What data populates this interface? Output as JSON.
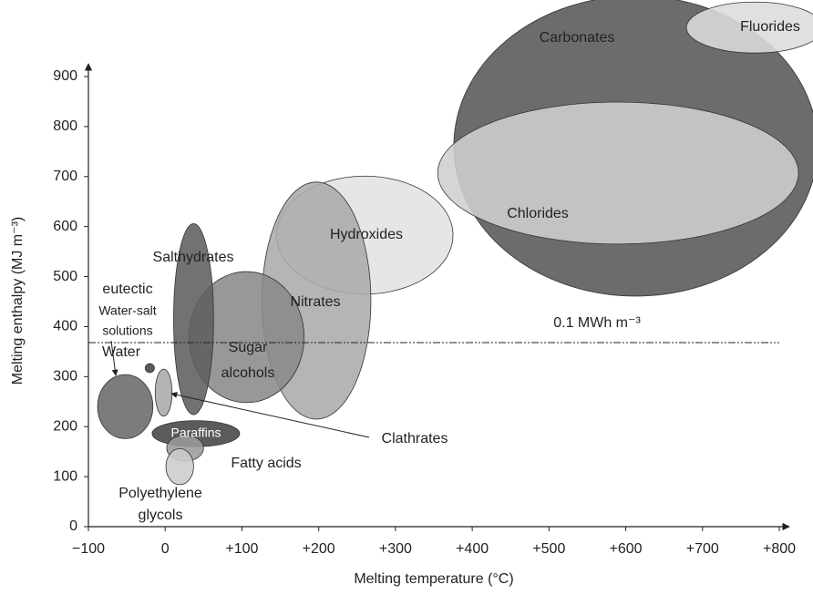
{
  "chart_data": {
    "type": "ellipse",
    "x_label": "Melting temperature (°C)",
    "y_label": "Melting enthalpy (MJ m⁻³)",
    "xlim": [
      -100,
      800
    ],
    "ylim": [
      0,
      900
    ],
    "xticks": [
      {
        "value": -100,
        "label": "−100"
      },
      0,
      {
        "value": 100,
        "label": "+100"
      },
      {
        "value": 200,
        "label": "+200"
      },
      {
        "value": 300,
        "label": "+300"
      },
      {
        "value": 400,
        "label": "+400"
      },
      {
        "value": 500,
        "label": "+500"
      },
      {
        "value": 600,
        "label": "+600"
      },
      {
        "value": 700,
        "label": "+700"
      },
      {
        "value": 800,
        "label": "+800"
      }
    ],
    "yticks": [
      0,
      100,
      200,
      300,
      400,
      500,
      600,
      700,
      800,
      900
    ],
    "reference_line": {
      "value": 368,
      "label": "0.1 MWh m⁻³"
    },
    "regions": [
      {
        "label": [
          "Carbonates"
        ],
        "color": "#585858",
        "x": 613,
        "rx": 237,
        "y": 761,
        "ry": 300
      },
      {
        "label": [
          "Fluorides"
        ],
        "color": "#dcdcdc",
        "x": 768,
        "rx": 89,
        "y": 998,
        "ry": 51
      },
      {
        "label": [
          "Chlorides"
        ],
        "color": "#cfcfcf",
        "x": 590,
        "rx": 235,
        "y": 707,
        "ry": 142
      },
      {
        "label": [
          "Hydroxides"
        ],
        "color": "#e2e2e2",
        "x": 260,
        "rx": 115,
        "y": 583,
        "ry": 118
      },
      {
        "label": [
          "Nitrates"
        ],
        "color": "#ababab",
        "x": 197,
        "rx": 71,
        "y": 452,
        "ry": 237
      },
      {
        "label": [
          "Sugar",
          "alcohols"
        ],
        "color": "#8a8a8a",
        "x": 106,
        "rx": 75,
        "y": 379,
        "ry": 131
      },
      {
        "label": [
          "Salthydrates"
        ],
        "color": "#5e5e5e",
        "x": 37,
        "rx": 26,
        "y": 415,
        "ry": 191
      },
      {
        "label": [
          "eutectic",
          "Water-salt",
          "solutions"
        ],
        "color": "#6a6a6a",
        "x": -52,
        "rx": 36,
        "y": 240,
        "ry": 64
      },
      {
        "label": [
          "Water"
        ],
        "color": "#444444",
        "x": -20,
        "rx": 6,
        "y": 317,
        "ry": 9
      },
      {
        "label": [
          "Clathrates"
        ],
        "color": "#aaaaaa",
        "x": -2,
        "rx": 11,
        "y": 268,
        "ry": 47
      },
      {
        "label": [
          "Paraffins"
        ],
        "color": "#444444",
        "x": 40,
        "rx": 57,
        "y": 186,
        "ry": 26
      },
      {
        "label": [
          "Fatty acids"
        ],
        "color": "#9a9a9a",
        "x": 26,
        "rx": 24,
        "y": 157,
        "ry": 26
      },
      {
        "label": [
          "Polyethylene",
          "glycols"
        ],
        "color": "#cccccc",
        "x": 19,
        "rx": 18,
        "y": 120,
        "ry": 36
      }
    ]
  }
}
